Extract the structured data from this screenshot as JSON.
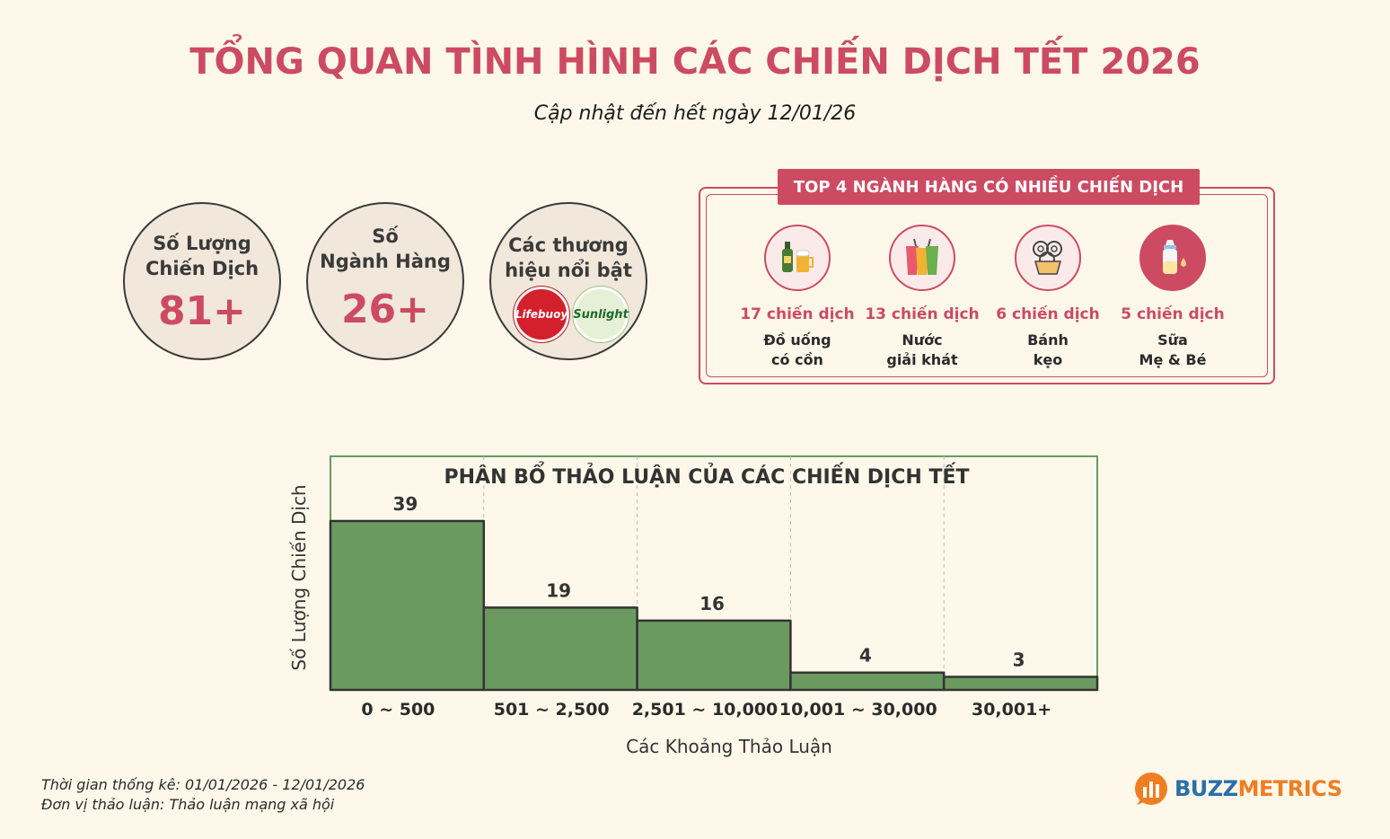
{
  "header": {
    "title": "TỔNG QUAN TÌNH HÌNH CÁC CHIẾN DỊCH TẾT 2026",
    "subtitle": "Cập nhật đến hết ngày 12/01/26"
  },
  "stats": {
    "campaigns": {
      "label_line1": "Số Lượng",
      "label_line2": "Chiến Dịch",
      "value": "81+"
    },
    "industries": {
      "label_line1": "Số",
      "label_line2": "Ngành Hàng",
      "value": "26+"
    },
    "brands": {
      "label_line1": "Các thương",
      "label_line2": "hiệu nổi bật",
      "logo1": "Lifebuoy",
      "logo2": "Sunlight"
    }
  },
  "top_categories": {
    "title": "TOP 4 NGÀNH HÀNG CÓ NHIỀU CHIẾN DỊCH",
    "items": [
      {
        "count": "17 chiến dịch",
        "name_line1": "Đồ uống",
        "name_line2": "có cồn",
        "icon": "beer-bottle-icon"
      },
      {
        "count": "13 chiến dịch",
        "name_line1": "Nước",
        "name_line2": "giải khát",
        "icon": "soft-drink-icon"
      },
      {
        "count": "6 chiến dịch",
        "name_line1": "Bánh",
        "name_line2": "kẹo",
        "icon": "cookie-icon"
      },
      {
        "count": "5 chiến dịch",
        "name_line1": "Sữa",
        "name_line2": "Mẹ & Bé",
        "icon": "baby-bottle-icon"
      }
    ]
  },
  "chart_data": {
    "type": "bar",
    "title": "PHÂN BỔ THẢO LUẬN CỦA CÁC CHIẾN DỊCH TẾT",
    "categories": [
      "0 ~ 500",
      "501 ~ 2,500",
      "2,501 ~ 10,000",
      "10,001 ~ 30,000",
      "30,001+"
    ],
    "values": [
      39,
      19,
      16,
      4,
      3
    ],
    "xlabel": "Các Khoảng Thảo Luận",
    "ylabel": "Số Lượng Chiến Dịch",
    "ylim": [
      0,
      39
    ],
    "bar_color": "#6a9a5f",
    "frame_color": "#6a9a5f"
  },
  "footer": {
    "period": "Thời gian thống kê: 01/01/2026 - 12/01/2026",
    "unit": "Đơn vị thảo luận: Thảo luận mạng xã hội",
    "brand_part1": "BUZZ",
    "brand_part2": "METRICS"
  },
  "colors": {
    "accent": "#cc4b63",
    "background": "#fdf8ea",
    "circle_fill": "#f1e7da",
    "brand_blue": "#2a6fa8",
    "brand_orange": "#ef7d22"
  }
}
